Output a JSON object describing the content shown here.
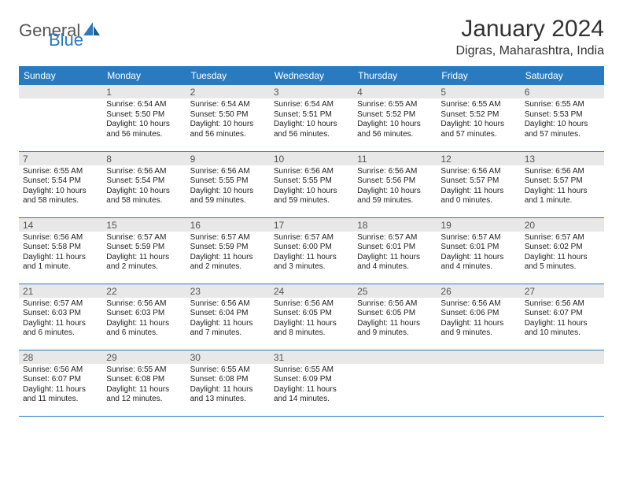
{
  "brand": {
    "part1": "General",
    "part2": "Blue"
  },
  "colors": {
    "accent": "#2a7ac0",
    "header_bg": "#2a7ac0",
    "daynum_bg": "#e8e8e8",
    "text": "#222222",
    "grid": "#2a7ac0"
  },
  "title": "January 2024",
  "location": "Digras, Maharashtra, India",
  "weekdays": [
    "Sunday",
    "Monday",
    "Tuesday",
    "Wednesday",
    "Thursday",
    "Friday",
    "Saturday"
  ],
  "layout": {
    "first_weekday_index": 1,
    "days_in_month": 31
  },
  "days": {
    "1": {
      "sunrise": "6:54 AM",
      "sunset": "5:50 PM",
      "daylight": "10 hours and 56 minutes."
    },
    "2": {
      "sunrise": "6:54 AM",
      "sunset": "5:50 PM",
      "daylight": "10 hours and 56 minutes."
    },
    "3": {
      "sunrise": "6:54 AM",
      "sunset": "5:51 PM",
      "daylight": "10 hours and 56 minutes."
    },
    "4": {
      "sunrise": "6:55 AM",
      "sunset": "5:52 PM",
      "daylight": "10 hours and 56 minutes."
    },
    "5": {
      "sunrise": "6:55 AM",
      "sunset": "5:52 PM",
      "daylight": "10 hours and 57 minutes."
    },
    "6": {
      "sunrise": "6:55 AM",
      "sunset": "5:53 PM",
      "daylight": "10 hours and 57 minutes."
    },
    "7": {
      "sunrise": "6:55 AM",
      "sunset": "5:54 PM",
      "daylight": "10 hours and 58 minutes."
    },
    "8": {
      "sunrise": "6:56 AM",
      "sunset": "5:54 PM",
      "daylight": "10 hours and 58 minutes."
    },
    "9": {
      "sunrise": "6:56 AM",
      "sunset": "5:55 PM",
      "daylight": "10 hours and 59 minutes."
    },
    "10": {
      "sunrise": "6:56 AM",
      "sunset": "5:55 PM",
      "daylight": "10 hours and 59 minutes."
    },
    "11": {
      "sunrise": "6:56 AM",
      "sunset": "5:56 PM",
      "daylight": "10 hours and 59 minutes."
    },
    "12": {
      "sunrise": "6:56 AM",
      "sunset": "5:57 PM",
      "daylight": "11 hours and 0 minutes."
    },
    "13": {
      "sunrise": "6:56 AM",
      "sunset": "5:57 PM",
      "daylight": "11 hours and 1 minute."
    },
    "14": {
      "sunrise": "6:56 AM",
      "sunset": "5:58 PM",
      "daylight": "11 hours and 1 minute."
    },
    "15": {
      "sunrise": "6:57 AM",
      "sunset": "5:59 PM",
      "daylight": "11 hours and 2 minutes."
    },
    "16": {
      "sunrise": "6:57 AM",
      "sunset": "5:59 PM",
      "daylight": "11 hours and 2 minutes."
    },
    "17": {
      "sunrise": "6:57 AM",
      "sunset": "6:00 PM",
      "daylight": "11 hours and 3 minutes."
    },
    "18": {
      "sunrise": "6:57 AM",
      "sunset": "6:01 PM",
      "daylight": "11 hours and 4 minutes."
    },
    "19": {
      "sunrise": "6:57 AM",
      "sunset": "6:01 PM",
      "daylight": "11 hours and 4 minutes."
    },
    "20": {
      "sunrise": "6:57 AM",
      "sunset": "6:02 PM",
      "daylight": "11 hours and 5 minutes."
    },
    "21": {
      "sunrise": "6:57 AM",
      "sunset": "6:03 PM",
      "daylight": "11 hours and 6 minutes."
    },
    "22": {
      "sunrise": "6:56 AM",
      "sunset": "6:03 PM",
      "daylight": "11 hours and 6 minutes."
    },
    "23": {
      "sunrise": "6:56 AM",
      "sunset": "6:04 PM",
      "daylight": "11 hours and 7 minutes."
    },
    "24": {
      "sunrise": "6:56 AM",
      "sunset": "6:05 PM",
      "daylight": "11 hours and 8 minutes."
    },
    "25": {
      "sunrise": "6:56 AM",
      "sunset": "6:05 PM",
      "daylight": "11 hours and 9 minutes."
    },
    "26": {
      "sunrise": "6:56 AM",
      "sunset": "6:06 PM",
      "daylight": "11 hours and 9 minutes."
    },
    "27": {
      "sunrise": "6:56 AM",
      "sunset": "6:07 PM",
      "daylight": "11 hours and 10 minutes."
    },
    "28": {
      "sunrise": "6:56 AM",
      "sunset": "6:07 PM",
      "daylight": "11 hours and 11 minutes."
    },
    "29": {
      "sunrise": "6:55 AM",
      "sunset": "6:08 PM",
      "daylight": "11 hours and 12 minutes."
    },
    "30": {
      "sunrise": "6:55 AM",
      "sunset": "6:08 PM",
      "daylight": "11 hours and 13 minutes."
    },
    "31": {
      "sunrise": "6:55 AM",
      "sunset": "6:09 PM",
      "daylight": "11 hours and 14 minutes."
    }
  },
  "labels": {
    "sunrise": "Sunrise:",
    "sunset": "Sunset:",
    "daylight": "Daylight:"
  }
}
